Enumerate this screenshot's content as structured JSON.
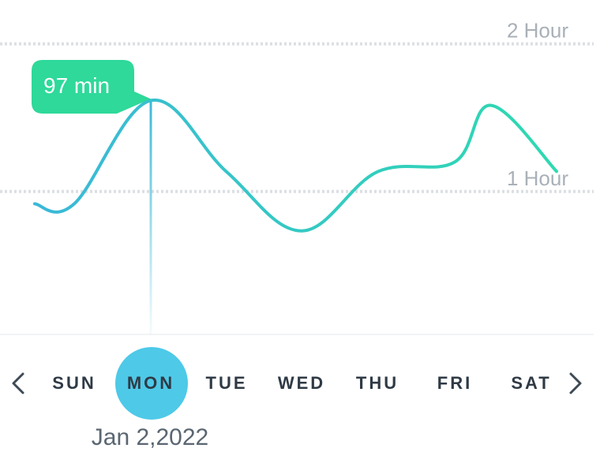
{
  "chart_data": {
    "type": "line",
    "categories": [
      "SUN",
      "MON",
      "TUE",
      "WED",
      "THU",
      "FRI",
      "SAT"
    ],
    "series": [
      {
        "values": [
          55,
          97,
          68,
          44,
          68,
          72,
          81
        ],
        "color_start": "#3bb8d8",
        "color_end": "#2ed9b0"
      }
    ],
    "y_unit": "min",
    "ylim": [
      0,
      120
    ],
    "y_gridlines": [
      {
        "value": 60,
        "label": "1 Hour"
      },
      {
        "value": 120,
        "label": "2 Hour"
      }
    ],
    "selected_index": 1,
    "tooltip_text": "97 min",
    "tooltip_color": "#2ed99a",
    "grid": true
  },
  "nav": {
    "prev_icon": "chevron-left-icon",
    "next_icon": "chevron-right-icon"
  },
  "days": [
    "SUN",
    "MON",
    "TUE",
    "WED",
    "THU",
    "FRI",
    "SAT"
  ],
  "selected_date": "Jan 2,2022",
  "colors": {
    "selected_day_bg": "#4ec9e8",
    "day_text": "#2f3a45",
    "selected_day_text": "#2f3a45",
    "gridline": "#dcdfe3"
  }
}
